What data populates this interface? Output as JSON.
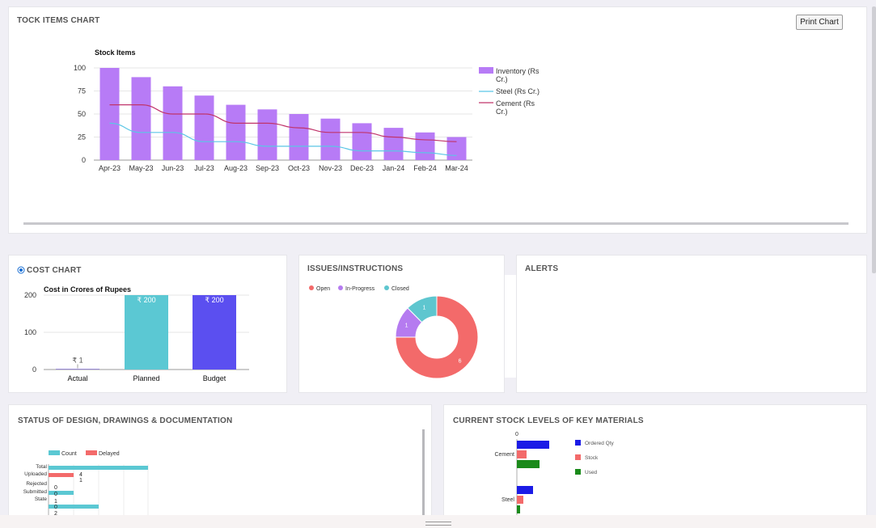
{
  "stock_card": {
    "title": "TOCK ITEMS CHART",
    "print_label": "Print Chart"
  },
  "cost_card": {
    "title": "COST CHART"
  },
  "issues_card": {
    "title": "ISSUES/INSTRUCTIONS"
  },
  "alerts_card": {
    "title": "ALERTS"
  },
  "status_card": {
    "title": "STATUS OF DESIGN, DRAWINGS & DOCUMENTATION"
  },
  "materials_card": {
    "title": "CURRENT STOCK LEVELS OF KEY MATERIALS"
  },
  "colors": {
    "inventory": "#b77bf6",
    "steel": "#5bc6e6",
    "cement": "#c0346b",
    "actual": "#9b8bd8",
    "planned": "#5bc8d3",
    "budget": "#5b4ff0",
    "open": "#f36a6a",
    "in_progress": "#b57bf0",
    "closed": "#5ec6cf",
    "count": "#5bc8d3",
    "delayed": "#f36a6a",
    "ordered": "#1b1be6",
    "stock": "#f36a6a",
    "used": "#1a8a1a"
  },
  "chart_data": [
    {
      "type": "bar",
      "title": "Stock Items",
      "categories": [
        "Apr-23",
        "May-23",
        "Jun-23",
        "Jul-23",
        "Aug-23",
        "Sep-23",
        "Oct-23",
        "Nov-23",
        "Dec-23",
        "Jan-24",
        "Feb-24",
        "Mar-24"
      ],
      "series": [
        {
          "name": "Inventory (Rs Cr.)",
          "type": "bar",
          "values": [
            100,
            90,
            80,
            70,
            60,
            55,
            50,
            45,
            40,
            35,
            30,
            25
          ]
        },
        {
          "name": "Steel (Rs Cr.)",
          "type": "line",
          "values": [
            40,
            30,
            30,
            20,
            20,
            15,
            15,
            15,
            10,
            10,
            8,
            5
          ]
        },
        {
          "name": "Cement (Rs Cr.)",
          "type": "line",
          "values": [
            60,
            60,
            50,
            50,
            40,
            40,
            35,
            30,
            30,
            25,
            22,
            20
          ]
        }
      ],
      "ylim": [
        0,
        100
      ],
      "yticks": [
        0,
        25,
        50,
        75,
        100
      ],
      "legend_position": "right",
      "grid": true
    },
    {
      "type": "bar",
      "title": "Cost in Crores of Rupees",
      "categories": [
        "Actual",
        "Planned",
        "Budget"
      ],
      "values": [
        1,
        200,
        200
      ],
      "data_labels": [
        "₹ 1",
        "₹ 200",
        "₹ 200"
      ],
      "ylim": [
        0,
        200
      ],
      "yticks": [
        0,
        100,
        200
      ],
      "grid": true
    },
    {
      "type": "pie",
      "donut": true,
      "categories": [
        "Open",
        "In-Progress",
        "Closed"
      ],
      "values": [
        6,
        1,
        1
      ],
      "data_labels": [
        "6",
        "1",
        "1"
      ],
      "legend_position": "top-left"
    },
    {
      "type": "bar",
      "orientation": "horizontal",
      "categories": [
        "Total",
        "Uploaded",
        "Rejected",
        "Submitted",
        "State"
      ],
      "series": [
        {
          "name": "Count",
          "values": [
            null,
            4,
            0,
            null,
            null
          ]
        },
        {
          "name": "Delayed",
          "values": [
            null,
            1,
            null,
            0,
            2
          ]
        }
      ],
      "value_labels": [
        "4",
        "1",
        "0",
        "0",
        "1",
        "0",
        "2"
      ],
      "legend_position": "top-left"
    },
    {
      "type": "bar",
      "orientation": "horizontal",
      "categories": [
        "Cement",
        "Steel"
      ],
      "series": [
        {
          "name": "Ordered Qty",
          "values": [
            null,
            null
          ]
        },
        {
          "name": "Stock",
          "values": [
            null,
            null
          ]
        },
        {
          "name": "Used",
          "values": [
            null,
            null
          ]
        }
      ],
      "xticks": [
        "0"
      ],
      "legend_position": "right"
    }
  ]
}
